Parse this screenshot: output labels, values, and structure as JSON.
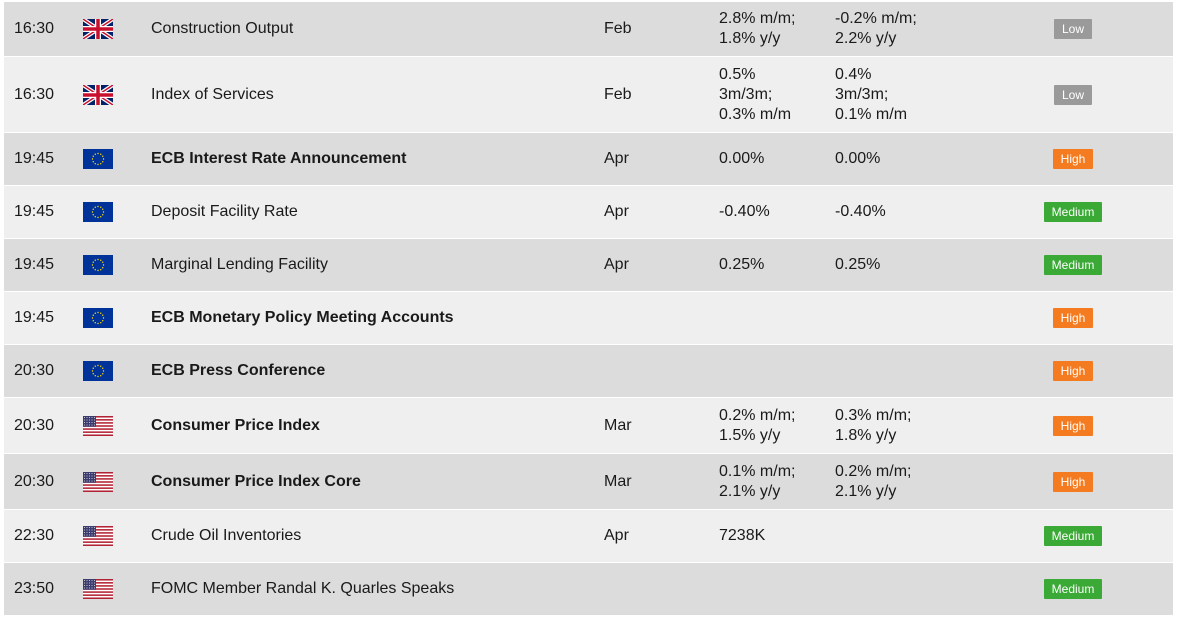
{
  "colors": {
    "low": "#9a9a9a",
    "high": "#f47b20",
    "medium": "#3aa935",
    "row_odd": "#dcdcdc",
    "row_even": "#efefef"
  },
  "rows": [
    {
      "time": "16:30",
      "flag": "uk-flag-icon",
      "event": "Construction Output",
      "bold": false,
      "period": "Feb",
      "prev": [
        "2.8% m/m;",
        "1.8% y/y"
      ],
      "forecast": [
        "-0.2% m/m;",
        "2.2% y/y"
      ],
      "impact": "Low"
    },
    {
      "time": "16:30",
      "flag": "uk-flag-icon",
      "event": "Index of Services",
      "bold": false,
      "period": "Feb",
      "prev": [
        "0.5%",
        "3m/3m;",
        "0.3% m/m"
      ],
      "forecast": [
        "0.4%",
        "3m/3m;",
        "0.1% m/m"
      ],
      "impact": "Low"
    },
    {
      "time": "19:45",
      "flag": "eu-flag-icon",
      "event": "ECB Interest Rate Announcement",
      "bold": true,
      "period": "Apr",
      "prev": [
        "0.00%"
      ],
      "forecast": [
        "0.00%"
      ],
      "impact": "High"
    },
    {
      "time": "19:45",
      "flag": "eu-flag-icon",
      "event": "Deposit Facility Rate",
      "bold": false,
      "period": "Apr",
      "prev": [
        "-0.40%"
      ],
      "forecast": [
        "-0.40%"
      ],
      "impact": "Medium"
    },
    {
      "time": "19:45",
      "flag": "eu-flag-icon",
      "event": "Marginal Lending Facility",
      "bold": false,
      "period": "Apr",
      "prev": [
        "0.25%"
      ],
      "forecast": [
        "0.25%"
      ],
      "impact": "Medium"
    },
    {
      "time": "19:45",
      "flag": "eu-flag-icon",
      "event": "ECB Monetary Policy Meeting Accounts",
      "bold": true,
      "period": "",
      "prev": [],
      "forecast": [],
      "impact": "High"
    },
    {
      "time": "20:30",
      "flag": "eu-flag-icon",
      "event": "ECB Press Conference",
      "bold": true,
      "period": "",
      "prev": [],
      "forecast": [],
      "impact": "High"
    },
    {
      "time": "20:30",
      "flag": "us-flag-icon",
      "event": "Consumer Price Index",
      "bold": true,
      "period": "Mar",
      "prev": [
        "0.2% m/m;",
        "1.5% y/y"
      ],
      "forecast": [
        "0.3% m/m;",
        "1.8% y/y"
      ],
      "impact": "High"
    },
    {
      "time": "20:30",
      "flag": "us-flag-icon",
      "event": "Consumer Price Index Core",
      "bold": true,
      "period": "Mar",
      "prev": [
        "0.1% m/m;",
        "2.1% y/y"
      ],
      "forecast": [
        "0.2% m/m;",
        "2.1% y/y"
      ],
      "impact": "High"
    },
    {
      "time": "22:30",
      "flag": "us-flag-icon",
      "event": "Crude Oil Inventories",
      "bold": false,
      "period": "Apr",
      "prev": [
        "7238K"
      ],
      "forecast": [],
      "impact": "Medium"
    },
    {
      "time": "23:50",
      "flag": "us-flag-icon",
      "event": "FOMC Member Randal K. Quarles Speaks",
      "bold": false,
      "period": "",
      "prev": [],
      "forecast": [],
      "impact": "Medium"
    }
  ]
}
